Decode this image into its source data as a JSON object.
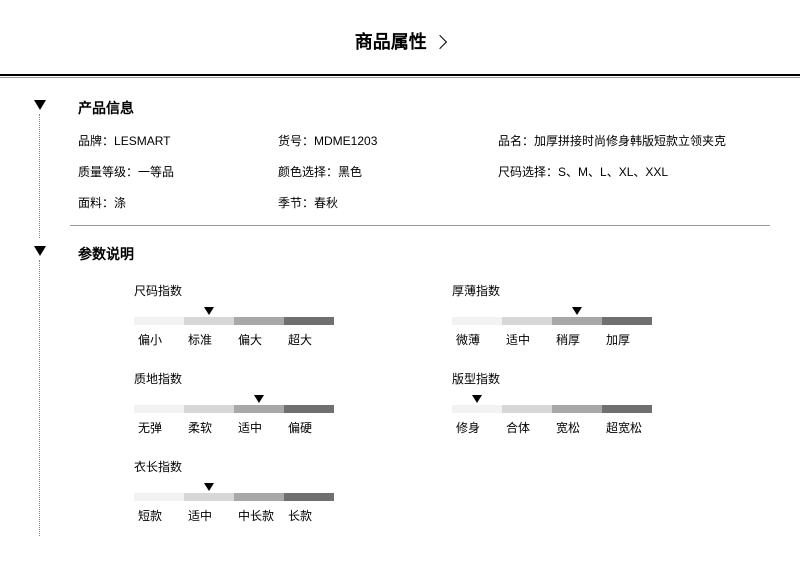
{
  "pageTitle": "商品属性",
  "sections": {
    "info": {
      "title": "产品信息"
    },
    "params": {
      "title": "参数说明"
    }
  },
  "productInfo": {
    "brand": {
      "label": "品牌：",
      "value": "LESMART"
    },
    "sku": {
      "label": "货号：",
      "value": "MDME1203"
    },
    "name": {
      "label": "品名：",
      "value": "加厚拼接时尚修身韩版短款立领夹克"
    },
    "grade": {
      "label": "质量等级：",
      "value": "一等品"
    },
    "color": {
      "label": "颜色选择：",
      "value": "黑色"
    },
    "size": {
      "label": "尺码选择：",
      "value": "S、M、L、XL、XXL"
    },
    "fabric": {
      "label": "面料：",
      "value": "涤"
    },
    "season": {
      "label": "季节：",
      "value": "春秋"
    }
  },
  "gradient": {
    "colors": [
      "#f2f2f2",
      "#d7d7d7",
      "#a8a8a8",
      "#6f6f6f"
    ]
  },
  "metrics": {
    "sizeIdx": {
      "title": "尺码指数",
      "labels": [
        "偏小",
        "标准",
        "偏大",
        "超大"
      ],
      "pointerIndex": 1
    },
    "thicknessIdx": {
      "title": "厚薄指数",
      "labels": [
        "微薄",
        "适中",
        "稍厚",
        "加厚"
      ],
      "pointerIndex": 2
    },
    "textureIdx": {
      "title": "质地指数",
      "labels": [
        "无弹",
        "柔软",
        "适中",
        "偏硬"
      ],
      "pointerIndex": 2
    },
    "fitIdx": {
      "title": "版型指数",
      "labels": [
        "修身",
        "合体",
        "宽松",
        "超宽松"
      ],
      "pointerIndex": 0
    },
    "lengthIdx": {
      "title": "衣长指数",
      "labels": [
        "短款",
        "适中",
        "中长款",
        "长款"
      ],
      "pointerIndex": 1
    }
  }
}
